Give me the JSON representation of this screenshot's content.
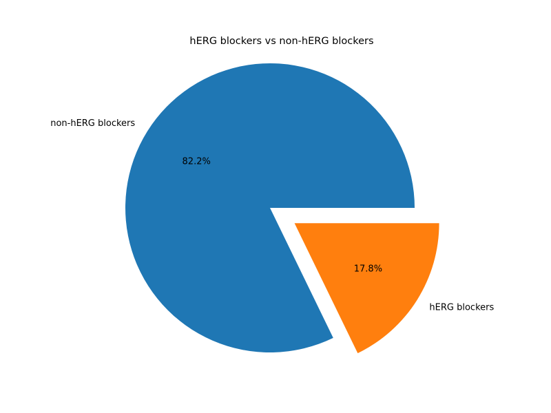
{
  "chart_data": {
    "type": "pie",
    "title": "hERG blockers vs non-hERG blockers",
    "slices": [
      {
        "label": "non-hERG blockers",
        "value": 82.2,
        "pct_label": "82.2%",
        "color": "#1f77b4",
        "exploded": false
      },
      {
        "label": "hERG blockers",
        "value": 17.8,
        "pct_label": "17.8%",
        "color": "#ff7f0e",
        "exploded": true
      }
    ],
    "start_angle_deg": 0,
    "direction": "counterclockwise",
    "legend": "none"
  }
}
